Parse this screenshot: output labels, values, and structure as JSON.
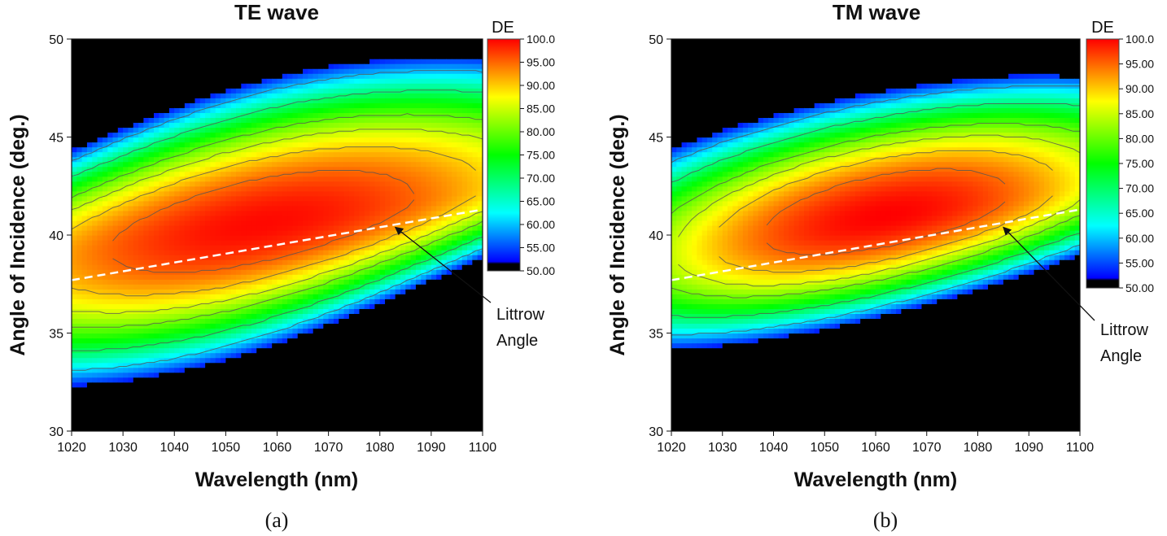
{
  "chart_data": [
    {
      "type": "heatmap",
      "title": "TE wave",
      "xlabel": "Wavelength (nm)",
      "ylabel": "Angle of Incidence (deg.)",
      "xlim": [
        1020,
        1100
      ],
      "ylim": [
        30,
        50
      ],
      "xticks": [
        1020,
        1030,
        1040,
        1050,
        1060,
        1070,
        1080,
        1090,
        1100
      ],
      "yticks": [
        30,
        35,
        40,
        45,
        50
      ],
      "colorbar": {
        "title": "DE",
        "range": [
          50,
          100
        ],
        "ticks": [
          "100.0",
          "95.00",
          "90.00",
          "85.00",
          "80.00",
          "75.00",
          "70.00",
          "65.00",
          "60.00",
          "55.00",
          "50.00"
        ]
      },
      "peak": {
        "wavelength": 1057,
        "angle": 39.6,
        "value": 99.8
      },
      "littrow_line": {
        "x": [
          1020,
          1100
        ],
        "y": [
          37.7,
          41.3
        ]
      },
      "annotation": {
        "line1": "Littrow",
        "line2": "Angle",
        "points_to": {
          "wavelength": 1083,
          "angle": 40.4
        }
      },
      "colors": {
        "peak": "#ff0000",
        "background": "#000000",
        "littrow_line": "#ffffff"
      },
      "sublabel": "(a)"
    },
    {
      "type": "heatmap",
      "title": "TM wave",
      "xlabel": "Wavelength (nm)",
      "ylabel": "Angle of Incidence (deg.)",
      "xlim": [
        1020,
        1100
      ],
      "ylim": [
        30,
        50
      ],
      "xticks": [
        1020,
        1030,
        1040,
        1050,
        1060,
        1070,
        1080,
        1090,
        1100
      ],
      "yticks": [
        30,
        35,
        40,
        45,
        50
      ],
      "colorbar": {
        "title": "DE",
        "range": [
          50,
          100
        ],
        "ticks": [
          "100.0",
          "95.00",
          "90.00",
          "85.00",
          "80.00",
          "75.00",
          "70.00",
          "65.00",
          "60.00",
          "55.00",
          "50.00"
        ]
      },
      "peak": {
        "wavelength": 1062,
        "angle": 39.6,
        "value": 99.5
      },
      "littrow_line": {
        "x": [
          1020,
          1100
        ],
        "y": [
          37.7,
          41.3
        ]
      },
      "annotation": {
        "line1": "Littrow",
        "line2": "Angle",
        "points_to": {
          "wavelength": 1085,
          "angle": 40.4
        }
      },
      "colors": {
        "peak": "#ff0000",
        "background": "#000000",
        "littrow_line": "#ffffff"
      },
      "sublabel": "(b)"
    }
  ]
}
